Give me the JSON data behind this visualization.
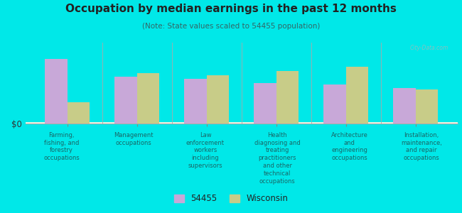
{
  "title": "Occupation by median earnings in the past 12 months",
  "subtitle": "(Note: State values scaled to 54455 population)",
  "background_color": "#00e8e8",
  "plot_bg_top": "#e8f0d8",
  "plot_bg_bottom": "#f5f8ee",
  "bar_color_54455": "#c8a8d8",
  "bar_color_wi": "#c8cc88",
  "categories": [
    "Farming,\nfishing, and\nforestry\noccupations",
    "Management\noccupations",
    "Law\nenforcement\nworkers\nincluding\nsupervisors",
    "Health\ndiagnosing and\ntreating\npractitioners\nand other\ntechnical\noccupations",
    "Architecture\nand\nengineering\noccupations",
    "Installation,\nmaintenance,\nand repair\noccupations"
  ],
  "values_54455": [
    0.8,
    0.58,
    0.55,
    0.5,
    0.48,
    0.44
  ],
  "values_wi": [
    0.26,
    0.62,
    0.6,
    0.65,
    0.7,
    0.42
  ],
  "ylabel": "$0",
  "legend_54455": "54455",
  "legend_wi": "Wisconsin",
  "watermark": "City-Data.com",
  "title_color": "#222222",
  "subtitle_color": "#336666",
  "label_color": "#1a6666"
}
